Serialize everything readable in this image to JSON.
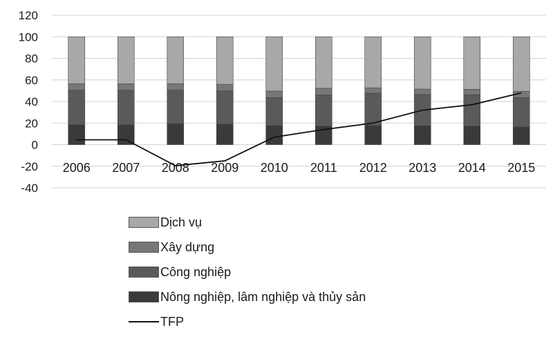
{
  "chart_data": {
    "type": "bar",
    "categories": [
      "2006",
      "2007",
      "2008",
      "2009",
      "2010",
      "2011",
      "2012",
      "2013",
      "2014",
      "2015"
    ],
    "ylim": [
      -40,
      120
    ],
    "yticks": [
      -40,
      -20,
      0,
      20,
      40,
      60,
      80,
      100,
      120
    ],
    "grid": true,
    "legend_position": "bottom",
    "series": [
      {
        "name": "Nông nghiệp, lâm nghiệp và thủy sản",
        "type": "bar",
        "color": "#3a3a3a",
        "values": [
          18.5,
          18.4,
          19.5,
          18.9,
          17.7,
          17.2,
          17.7,
          17.5,
          17.3,
          16.5
        ]
      },
      {
        "name": "Công nghiệp",
        "type": "bar",
        "color": "#5a5a5a",
        "values": [
          32,
          32,
          31,
          31,
          26,
          29,
          30,
          29,
          29,
          27
        ]
      },
      {
        "name": "Xây dựng",
        "type": "bar",
        "color": "#777777",
        "values": [
          6,
          6,
          6,
          6,
          6,
          6,
          5,
          5,
          5,
          6
        ]
      },
      {
        "name": "Dịch vụ",
        "type": "bar",
        "color": "#a8a8a8",
        "values": [
          43.5,
          43.6,
          43.5,
          44.1,
          50.3,
          47.8,
          47.3,
          48.5,
          48.7,
          50.5
        ]
      },
      {
        "name": "TFP",
        "type": "line",
        "color": "#111111",
        "values": [
          4.5,
          4.5,
          -19.5,
          -15,
          7,
          14,
          20,
          32,
          37,
          48
        ]
      }
    ]
  }
}
